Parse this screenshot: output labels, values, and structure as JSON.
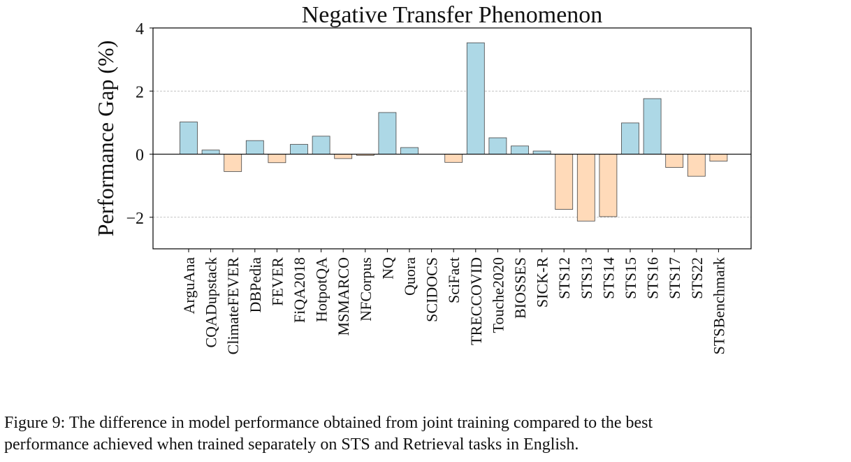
{
  "chart_data": {
    "type": "bar",
    "title": "Negative Transfer Phenomenon",
    "xlabel": "",
    "ylabel": "Performance Gap (%)",
    "ylim": [
      -3,
      4
    ],
    "yticks": [
      4,
      2,
      0,
      -2
    ],
    "ytick_labels": [
      "4",
      "2",
      "0",
      "−2"
    ],
    "grid": "horizontal dashed at major ticks",
    "legend": "none",
    "colors": {
      "positive": "#add8e6",
      "negative": "#ffdab9",
      "edge": "#444444",
      "zero_line": "#000000"
    },
    "categories": [
      "ArguAna",
      "CQADupstack",
      "ClimateFEVER",
      "DBPedia",
      "FEVER",
      "FiQA2018",
      "HotpotQA",
      "MSMARCO",
      "NFCorpus",
      "NQ",
      "Quora",
      "SCIDOCS",
      "SciFact",
      "TRECCOVID",
      "Touche2020",
      "BIOSSES",
      "SICK-R",
      "STS12",
      "STS13",
      "STS14",
      "STS15",
      "STS16",
      "STS17",
      "STS22",
      "STSBenchmark"
    ],
    "values": [
      1.02,
      0.13,
      -0.55,
      0.43,
      -0.27,
      0.31,
      0.57,
      -0.14,
      -0.04,
      1.32,
      0.21,
      0.0,
      -0.26,
      3.53,
      0.52,
      0.26,
      0.1,
      -1.75,
      -2.12,
      -1.98,
      0.99,
      1.76,
      -0.42,
      -0.7,
      -0.22
    ]
  },
  "caption": {
    "line1": "Figure 9: The difference in model performance obtained from joint training compared to the best",
    "line2": "performance achieved when trained separately on STS and Retrieval tasks in English."
  }
}
